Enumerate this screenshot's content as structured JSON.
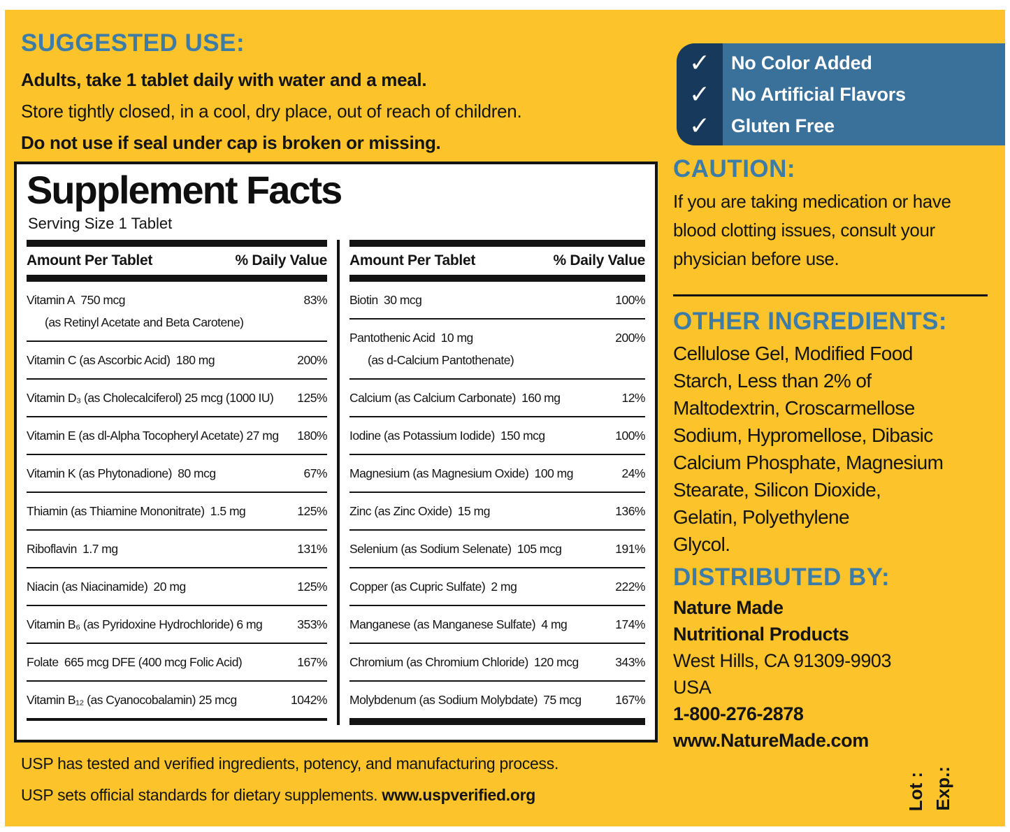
{
  "colors": {
    "label_yellow": "#FCC32B",
    "heading_blue": "#3E7CA8",
    "badge_navy": "#16395C",
    "badge_steel_blue": "#3A719B",
    "ink_black": "#141414"
  },
  "suggested_use": {
    "heading": "SUGGESTED USE:",
    "line1": "Adults, take 1 tablet daily with water and a meal.",
    "line2": "Store tightly closed, in a cool, dry place, out of reach of children.",
    "line3": "Do not use if seal under cap is broken or missing."
  },
  "badges": {
    "check": "✓",
    "item1": "No Color Added",
    "item2": "No Artificial Flavors",
    "item3": "Gluten Free"
  },
  "panel": {
    "title": "Supplement Facts",
    "serving": "Serving Size 1 Tablet",
    "amount_header": "Amount Per Tablet",
    "dv_header": "% Daily Value",
    "left_rows": [
      {
        "name": "Vitamin A 750 mcg",
        "sub": "(as Retinyl Acetate and Beta Carotene)",
        "dv": "83%"
      },
      {
        "name": "Vitamin C (as Ascorbic Acid) 180 mg",
        "dv": "200%"
      },
      {
        "name": "Vitamin D₃ (as Cholecalciferol) 25 mcg (1000 IU)",
        "dv": "125%"
      },
      {
        "name": "Vitamin E (as dl-Alpha Tocopheryl Acetate) 27 mg",
        "dv": "180%"
      },
      {
        "name": "Vitamin K (as Phytonadione) 80 mcg",
        "dv": "67%"
      },
      {
        "name": "Thiamin (as Thiamine Mononitrate) 1.5 mg",
        "dv": "125%"
      },
      {
        "name": "Riboflavin 1.7 mg",
        "dv": "131%"
      },
      {
        "name": "Niacin (as Niacinamide) 20 mg",
        "dv": "125%"
      },
      {
        "name": "Vitamin B₆ (as Pyridoxine Hydrochloride) 6 mg",
        "dv": "353%"
      },
      {
        "name": "Folate 665 mcg DFE (400 mcg Folic Acid)",
        "dv": "167%"
      },
      {
        "name": "Vitamin B₁₂ (as Cyanocobalamin) 25 mcg",
        "dv": "1042%"
      }
    ],
    "right_rows": [
      {
        "name": "Biotin 30 mcg",
        "dv": "100%"
      },
      {
        "name": "Pantothenic Acid 10 mg",
        "sub": "(as d-Calcium Pantothenate)",
        "dv": "200%"
      },
      {
        "name": "Calcium (as Calcium Carbonate) 160 mg",
        "dv": "12%"
      },
      {
        "name": "Iodine (as Potassium Iodide) 150 mcg",
        "dv": "100%"
      },
      {
        "name": "Magnesium (as Magnesium Oxide) 100 mg",
        "dv": "24%"
      },
      {
        "name": "Zinc (as Zinc Oxide) 15 mg",
        "dv": "136%"
      },
      {
        "name": "Selenium (as Sodium Selenate) 105 mcg",
        "dv": "191%"
      },
      {
        "name": "Copper (as Cupric Sulfate) 2 mg",
        "dv": "222%"
      },
      {
        "name": "Manganese (as Manganese Sulfate) 4 mg",
        "dv": "174%"
      },
      {
        "name": "Chromium (as Chromium Chloride) 120 mcg",
        "dv": "343%"
      },
      {
        "name": "Molybdenum (as Sodium Molybdate) 75 mcg",
        "dv": "167%"
      }
    ]
  },
  "usp": {
    "line1": "USP has tested and verified ingredients, potency, and manufacturing process.",
    "line2": "USP sets official standards for dietary supplements. ",
    "link": "www.uspverified.org"
  },
  "caution": {
    "heading": "CAUTION:",
    "line1": "If you are taking medication or have",
    "line2": "blood clotting issues, consult your",
    "line3": "physician before use."
  },
  "other_ingredients": {
    "heading": "OTHER INGREDIENTS:",
    "lines": [
      "Cellulose Gel, Modified Food",
      "Starch, Less than 2% of",
      "Maltodextrin, Croscarmellose",
      "Sodium, Hypromellose, Dibasic",
      "Calcium Phosphate, Magnesium",
      "Stearate, Silicon Dioxide,",
      "Gelatin, Polyethylene",
      "Glycol."
    ]
  },
  "distributed_by": {
    "heading": "DISTRIBUTED BY:",
    "line1": "Nature Made",
    "line2": "Nutritional Products",
    "line3": "West Hills, CA 91309-9903",
    "line4": "USA",
    "line5": "1-800-276-2878",
    "line6": "www.NatureMade.com"
  },
  "lot_exp": {
    "lot": "Lot :",
    "exp": "Exp.:"
  }
}
